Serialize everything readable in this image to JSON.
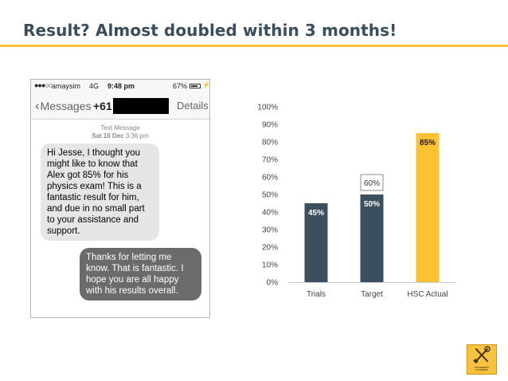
{
  "slide": {
    "title": "Result? Almost doubled within 3 months!",
    "accent_color": "#f7c23e"
  },
  "phone": {
    "status_bar": {
      "signal": "●●●○○",
      "carrier": "amaysim",
      "network": "4G",
      "time": "9:48 pm",
      "battery": "67%",
      "charging_icon": "bolt-icon"
    },
    "nav": {
      "back_label": "Messages",
      "contact_number": "+61",
      "details_label": "Details"
    },
    "meta": {
      "type": "Text Message",
      "date": "Sat 16 Dec",
      "time": "3:36 pm"
    },
    "messages": [
      {
        "direction": "incoming",
        "text": "Hi Jesse, I thought you might like to know that Alex got 85% for his physics exam! This is a fantastic result for him, and due in no small part to your assistance and support."
      },
      {
        "direction": "outgoing",
        "text": "Thanks for letting me know. That is fantastic. I hope you are all happy with his results overall."
      }
    ]
  },
  "chart_data": {
    "type": "bar",
    "categories": [
      "Trials",
      "Target",
      "HSC Actual"
    ],
    "values": [
      45,
      50,
      85
    ],
    "value_labels": [
      "45%",
      "50%",
      "85%"
    ],
    "bar_colors": [
      "#3b4f5e",
      "#3b4f5e",
      "#fbc234"
    ],
    "annotation": {
      "category": "Target",
      "value": 60,
      "label": "60%"
    },
    "y_ticks": [
      "0%",
      "10%",
      "20%",
      "30%",
      "40%",
      "50%",
      "60%",
      "70%",
      "80%",
      "90%",
      "100%"
    ],
    "ylim": [
      0,
      100
    ],
    "grid": false,
    "legend": "none"
  },
  "logo": {
    "icon": "tools-icon",
    "caption": "ENGINEERS LEARNING"
  }
}
